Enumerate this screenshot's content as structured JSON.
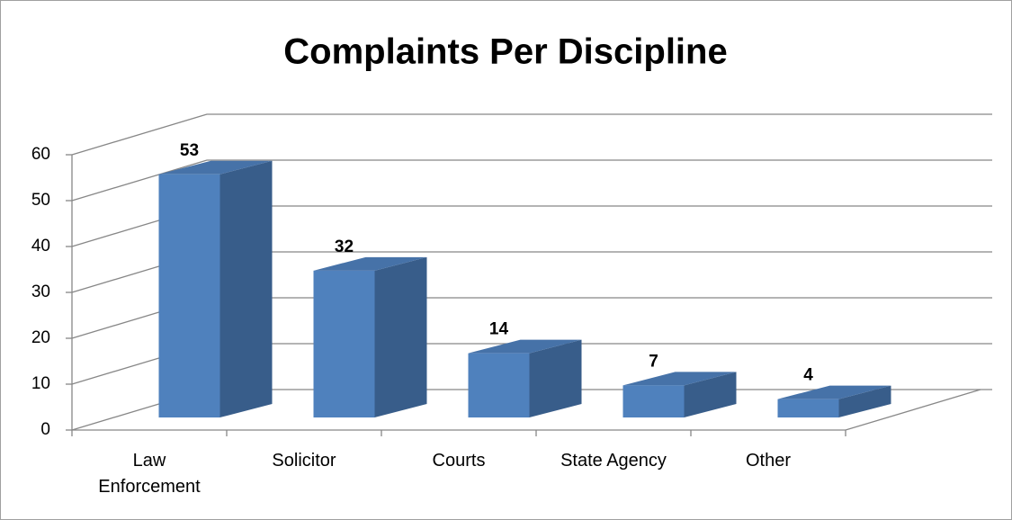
{
  "chart_data": {
    "type": "bar3d",
    "title": "Complaints Per Discipline",
    "categories": [
      "Law Enforcement",
      "Solicitor",
      "Courts",
      "State Agency",
      "Other"
    ],
    "values": [
      53,
      32,
      14,
      7,
      4
    ],
    "color": "#4f81bd",
    "ylim": [
      0,
      60
    ],
    "yticks": [
      0,
      10,
      20,
      30,
      40,
      50,
      60
    ],
    "grid": true
  }
}
